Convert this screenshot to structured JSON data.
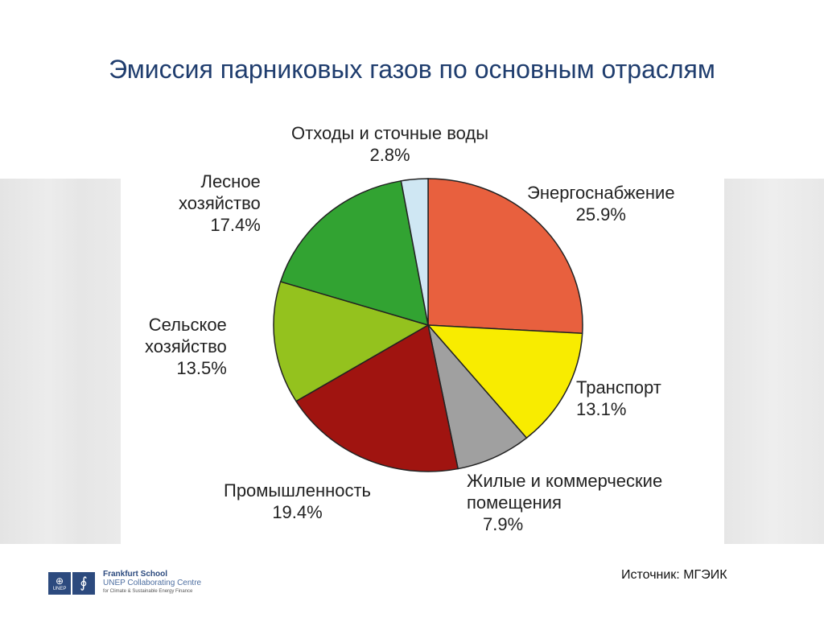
{
  "chart_data": {
    "type": "pie",
    "title": "Эмиссия парниковых газов по основным отраслям",
    "start": "top",
    "direction": "clockwise",
    "slices": [
      {
        "label": "Энергоснабжение",
        "value": 25.9,
        "value_label": "25.9%",
        "color": "#e8603e"
      },
      {
        "label": "Транспорт",
        "value": 13.1,
        "value_label": "13.1%",
        "color": "#f8ec00"
      },
      {
        "label": "Жилые и коммерческие помещения",
        "value": 7.9,
        "value_label": "7.9%",
        "color": "#a0a0a0"
      },
      {
        "label": "Промышленность",
        "value": 19.4,
        "value_label": "19.4%",
        "color": "#a01410"
      },
      {
        "label": "Сельское хозяйство",
        "value": 13.5,
        "value_label": "13.5%",
        "color": "#94c21e"
      },
      {
        "label": "Лесное хозяйство",
        "value": 17.4,
        "value_label": "17.4%",
        "color": "#32a332"
      },
      {
        "label": "Отходы и сточные воды",
        "value": 2.8,
        "value_label": "2.8%",
        "color": "#cfe7f3"
      }
    ]
  },
  "labels": {
    "energy": [
      "Энергоснабжение",
      "25.9%"
    ],
    "transport": [
      "Транспорт",
      "13.1%"
    ],
    "residential": [
      "Жилые и коммерческие",
      "помещения",
      "7.9%"
    ],
    "industry": [
      "Промышленность",
      "19.4%"
    ],
    "agriculture": [
      "Сельское",
      "хозяйство",
      "13.5%"
    ],
    "forestry": [
      "Лесное",
      "хозяйство",
      "17.4%"
    ],
    "waste": [
      "Отходы и сточные воды",
      "2.8%"
    ]
  },
  "source": "Источник: МГЭИК",
  "logo": {
    "unep": "UNEP",
    "line1": "Frankfurt School",
    "line2": "UNEP Collaborating Centre",
    "line3": "for Climate & Sustainable Energy Finance"
  }
}
